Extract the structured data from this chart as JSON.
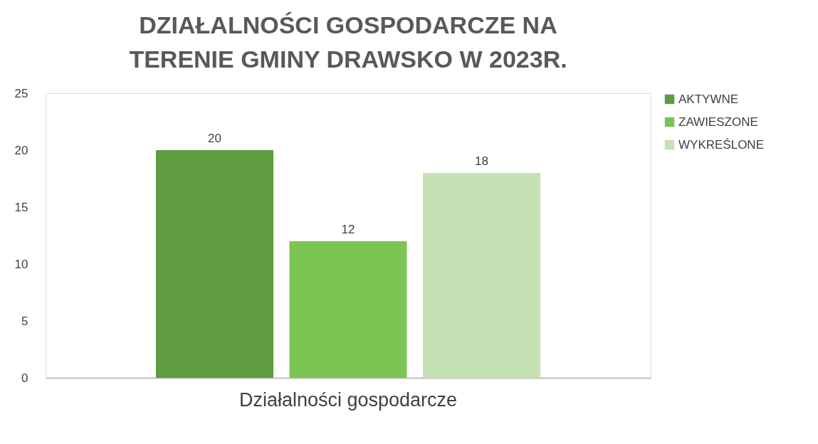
{
  "chart_data": {
    "type": "bar",
    "title": "DZIAŁALNOŚCI GOSPODARCZE NA TERENIE GMINY DRAWSKO W 2023R.",
    "categories": [
      "Działalności gospodarcze"
    ],
    "series": [
      {
        "name": "AKTYWNE",
        "color": "#5e9c3f",
        "values": [
          20
        ]
      },
      {
        "name": "ZAWIESZONE",
        "color": "#7cc453",
        "values": [
          12
        ]
      },
      {
        "name": "WYKREŚLONE",
        "color": "#c6e2b4",
        "values": [
          18
        ]
      }
    ],
    "ylim": [
      0,
      25
    ],
    "yticks": [
      0,
      5,
      10,
      15,
      20,
      25
    ],
    "grid": false,
    "legend": "right",
    "data_labels": true
  }
}
